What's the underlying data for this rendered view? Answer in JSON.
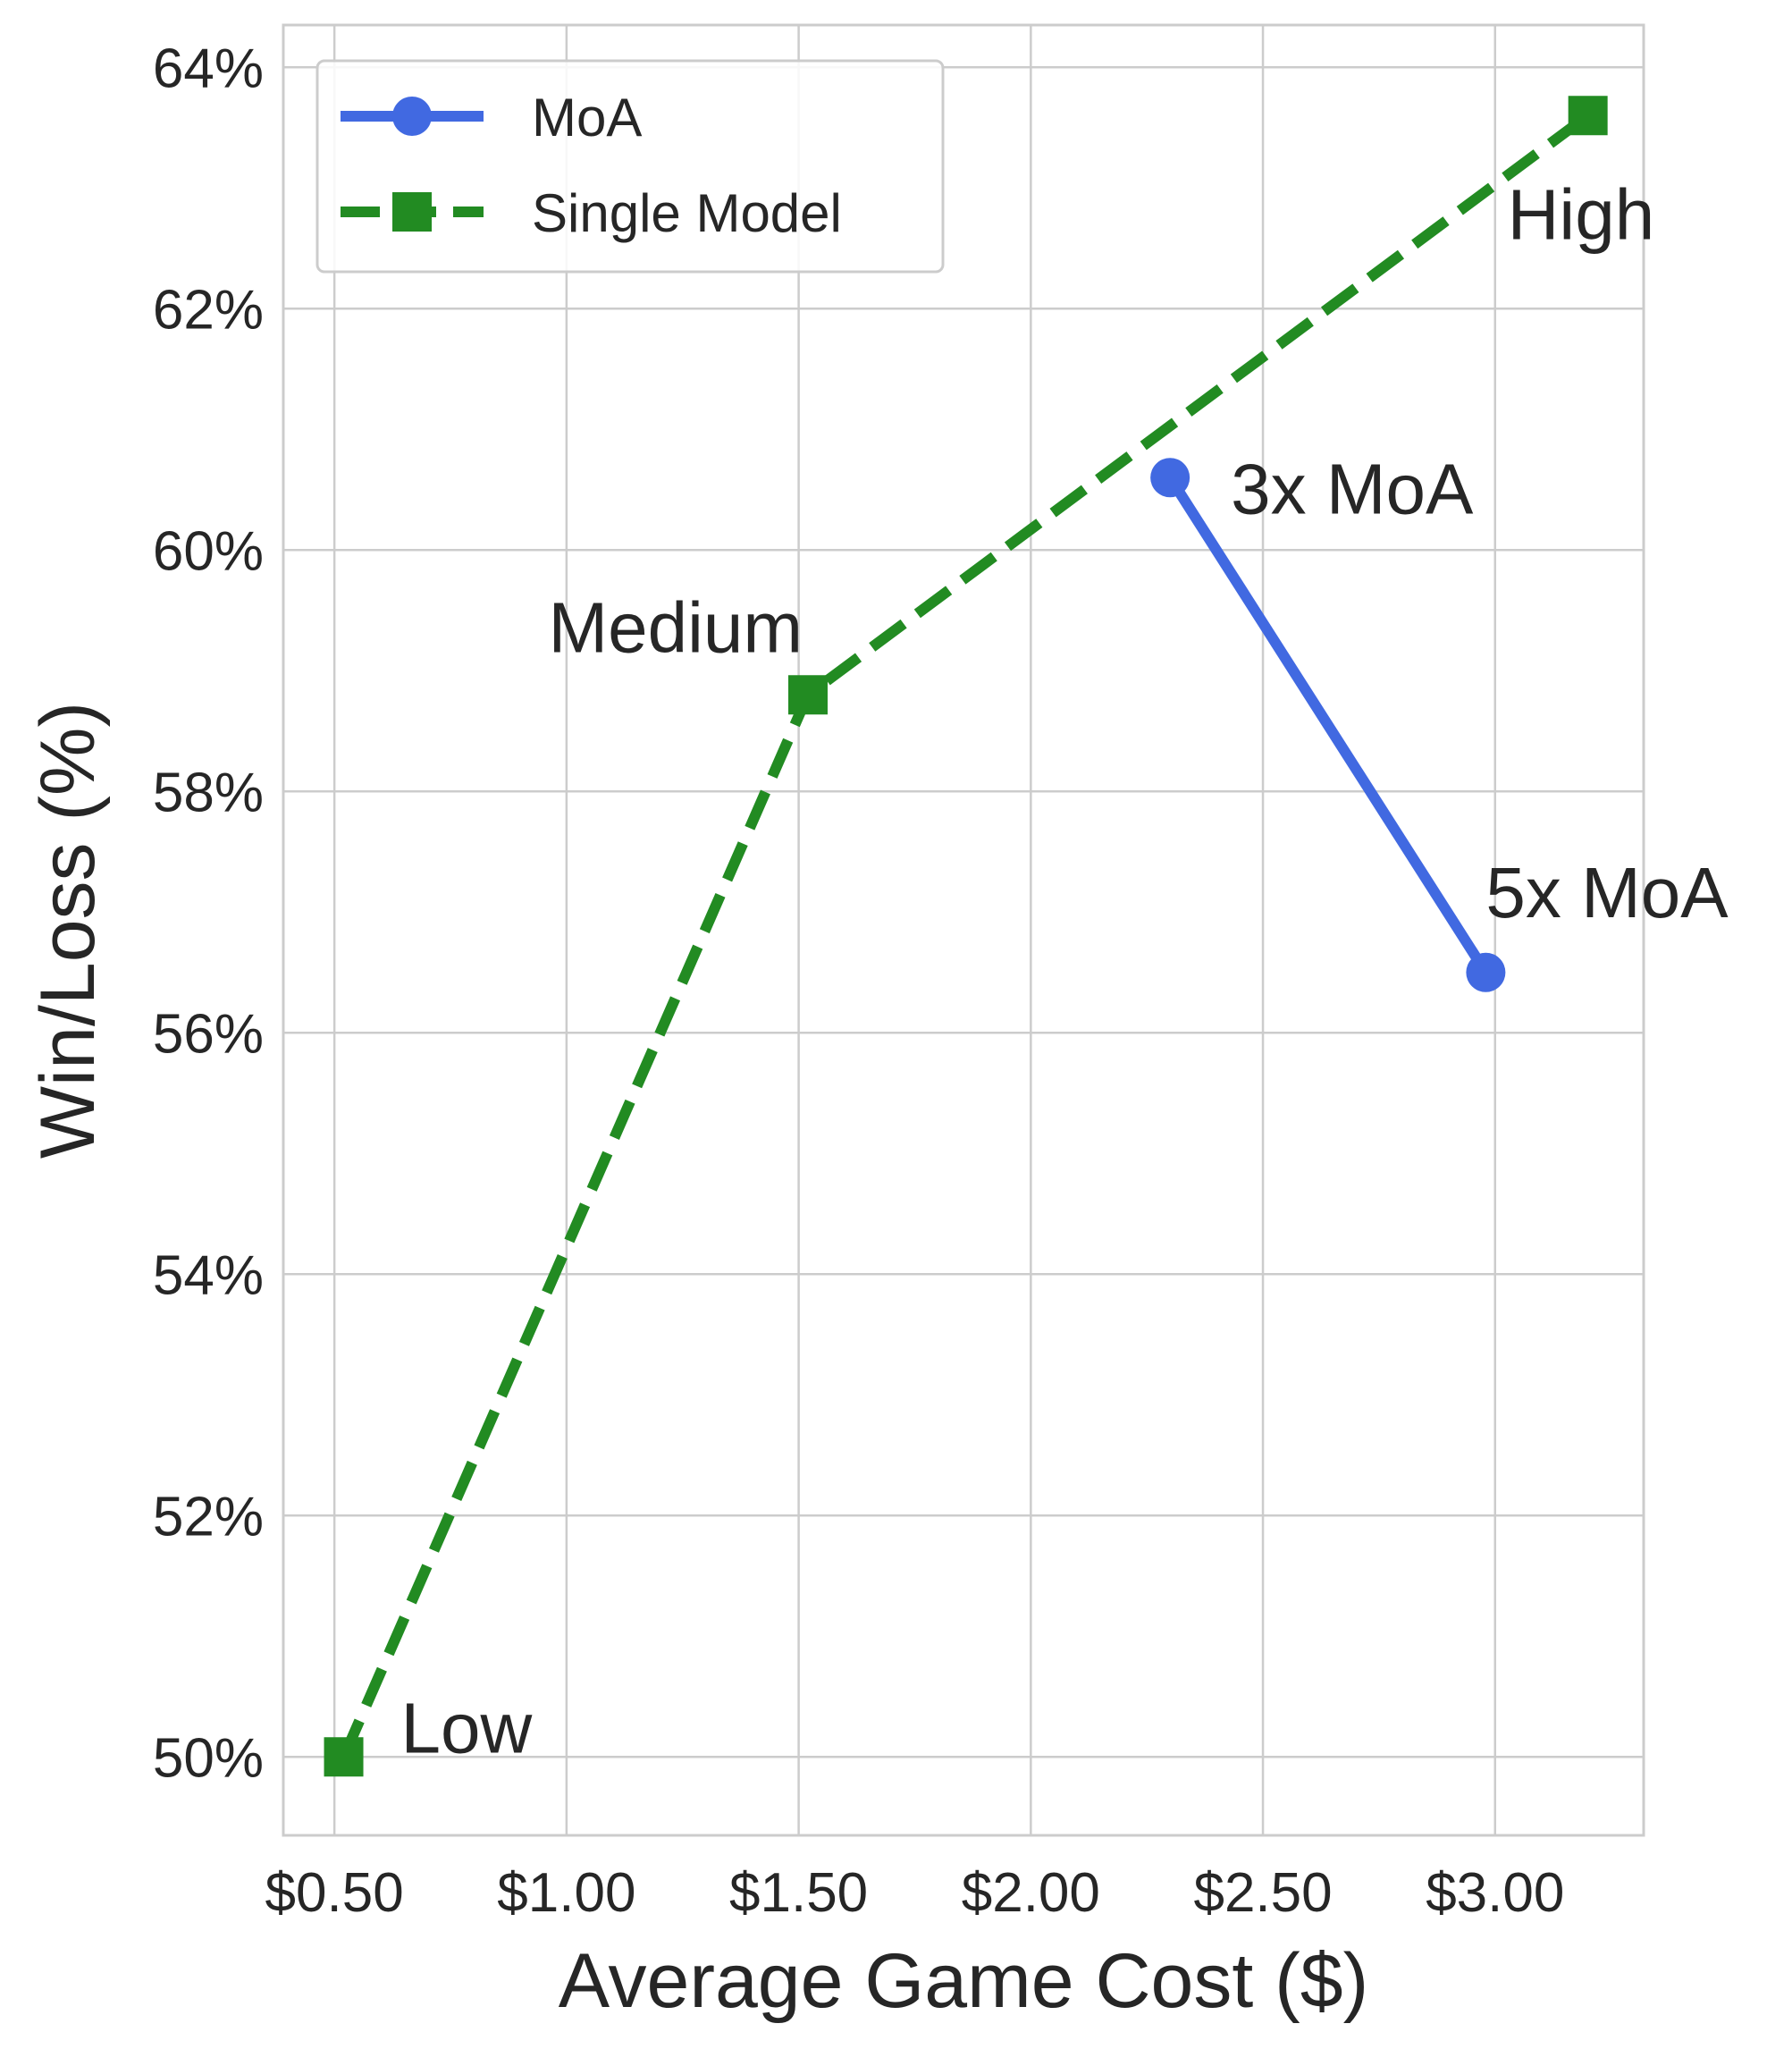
{
  "chart_data": {
    "type": "line",
    "title": "",
    "xlabel": "Average Game Cost ($)",
    "ylabel": "Win/Loss (%)",
    "xlim": [
      0.39,
      3.32
    ],
    "ylim": [
      49.35,
      64.35
    ],
    "xticks": [
      0.5,
      1.0,
      1.5,
      2.0,
      2.5,
      3.0
    ],
    "xtick_labels": [
      "$0.50",
      "$1.00",
      "$1.50",
      "$2.00",
      "$2.50",
      "$3.00"
    ],
    "yticks": [
      50,
      52,
      54,
      56,
      58,
      60,
      62,
      64
    ],
    "ytick_labels": [
      "50%",
      "52%",
      "54%",
      "56%",
      "58%",
      "60%",
      "62%",
      "64%"
    ],
    "grid": true,
    "legend_position": "top-left",
    "series": [
      {
        "name": "MoA",
        "color": "#4169e1",
        "line_style": "solid",
        "marker": "circle",
        "points": [
          {
            "x": 2.3,
            "y": 60.6,
            "label": "3x MoA"
          },
          {
            "x": 2.98,
            "y": 56.5,
            "label": "5x MoA"
          }
        ]
      },
      {
        "name": "Single Model",
        "color": "#228b22",
        "line_style": "dashed",
        "marker": "square",
        "points": [
          {
            "x": 0.52,
            "y": 50.0,
            "label": "Low"
          },
          {
            "x": 1.52,
            "y": 58.8,
            "label": "Medium"
          },
          {
            "x": 3.2,
            "y": 63.6,
            "label": "High"
          }
        ]
      }
    ]
  }
}
